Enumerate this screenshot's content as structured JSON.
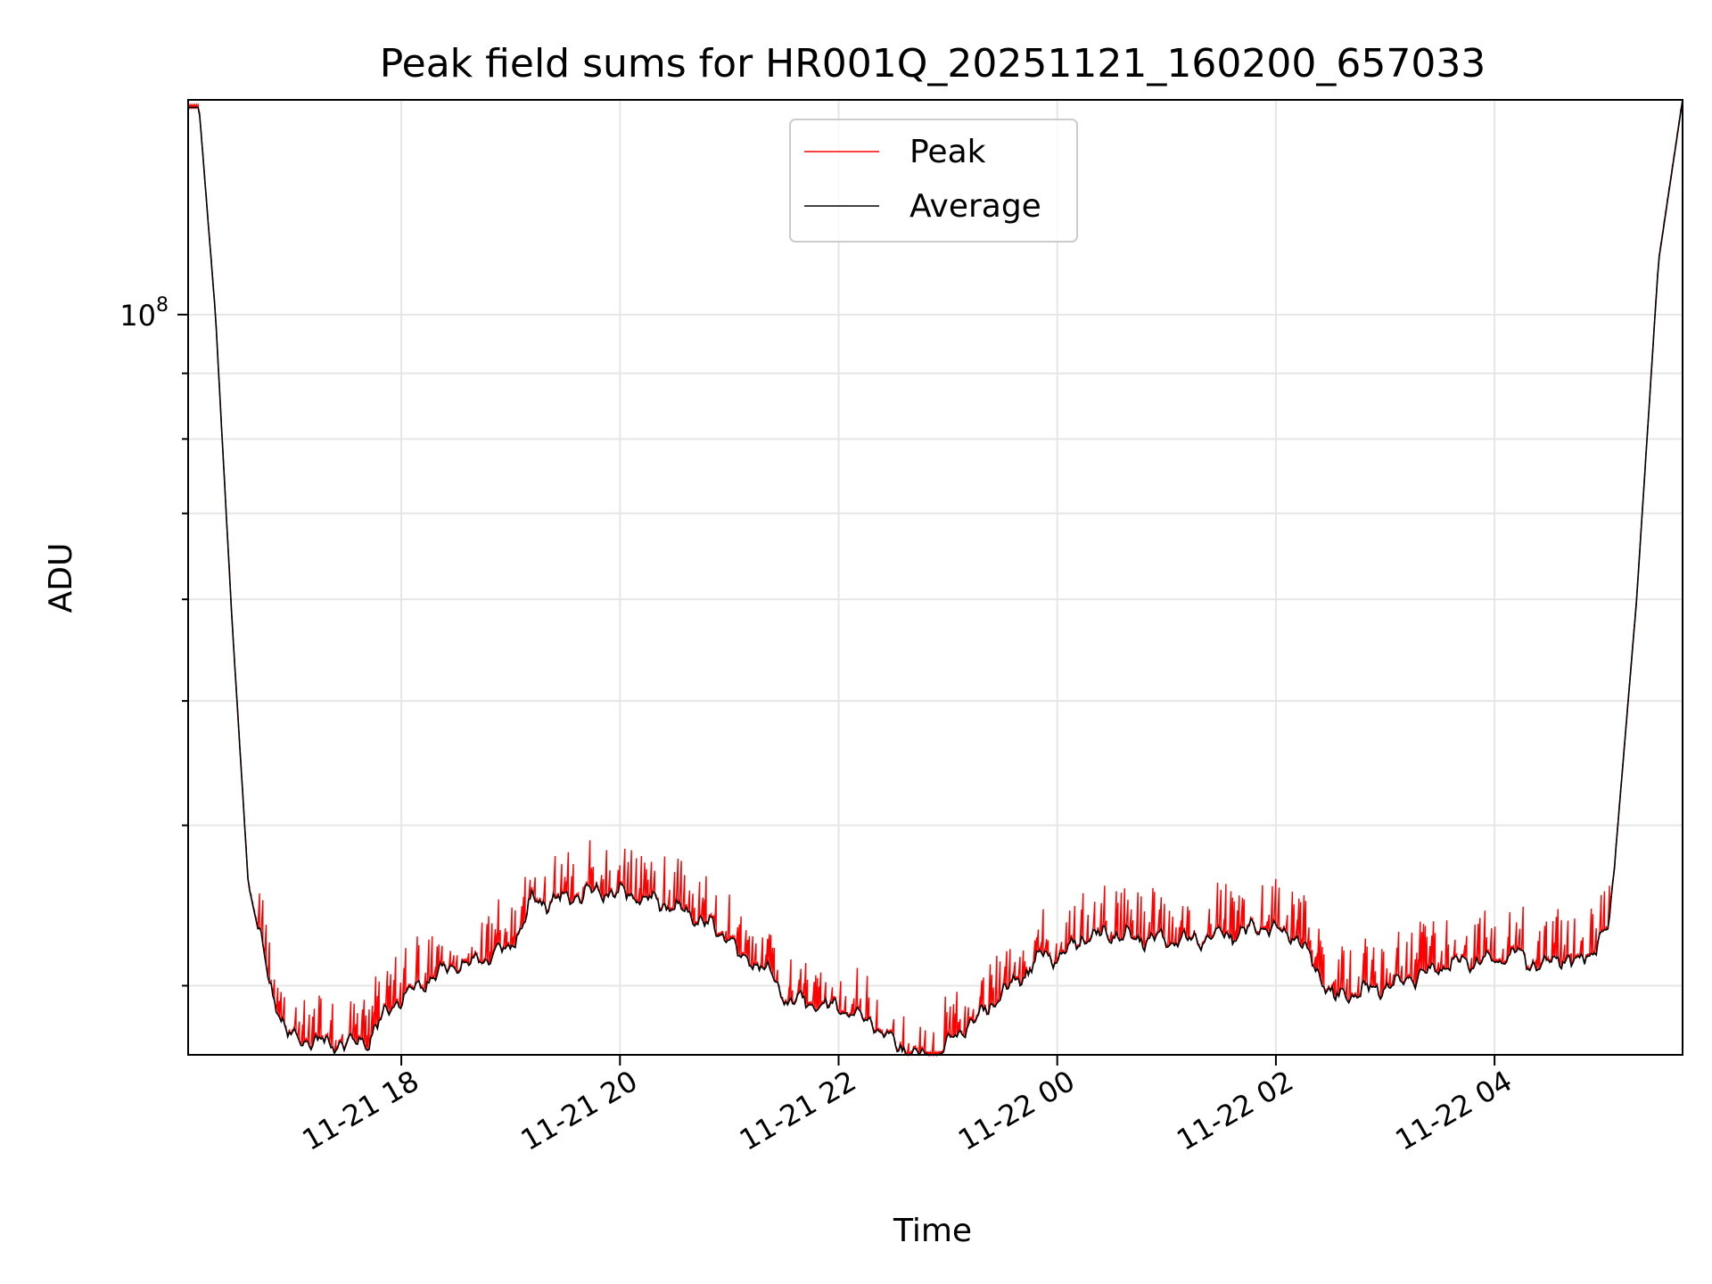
{
  "chart_data": {
    "type": "line",
    "title": "Peak field sums for HR001Q_20251121_160200_657033",
    "xlabel": "Time",
    "ylabel": "ADU",
    "yscale": "log",
    "ylim": [
      26500000,
      147000000
    ],
    "xlim_hours": [
      16.05,
      29.72
    ],
    "grid": true,
    "legend_position": "upper center",
    "x_ticks": [
      {
        "hour": 18,
        "label": "11-21 18"
      },
      {
        "hour": 20,
        "label": "11-21 20"
      },
      {
        "hour": 22,
        "label": "11-21 22"
      },
      {
        "hour": 24,
        "label": "11-22 00"
      },
      {
        "hour": 26,
        "label": "11-22 02"
      },
      {
        "hour": 28,
        "label": "11-22 04"
      }
    ],
    "y_ticks": [
      {
        "value": 100000000,
        "base": "10",
        "exponent": "8"
      }
    ],
    "y_minor_ticks": [
      30000000,
      40000000,
      50000000,
      60000000,
      70000000,
      80000000,
      90000000,
      200000000
    ],
    "series": [
      {
        "name": "Peak",
        "color": "#ff0000",
        "role": "spiky upper envelope, spikes above average"
      },
      {
        "name": "Average",
        "color": "#000000",
        "x_hours": [
          16.05,
          16.15,
          16.3,
          16.45,
          16.6,
          16.8,
          16.95,
          17.2,
          17.5,
          17.7,
          17.9,
          18.1,
          18.4,
          18.7,
          19.0,
          19.1,
          19.2,
          19.3,
          19.5,
          19.8,
          20.1,
          20.4,
          20.7,
          20.9,
          21.0,
          21.1,
          21.3,
          21.5,
          21.7,
          21.9,
          22.1,
          22.3,
          22.5,
          22.7,
          22.85,
          23.0,
          23.3,
          23.6,
          23.9,
          24.0,
          24.2,
          24.5,
          24.8,
          25.1,
          25.4,
          25.7,
          25.9,
          26.2,
          26.35,
          26.55,
          26.8,
          27.1,
          27.4,
          27.7,
          28.0,
          28.2,
          28.4,
          28.6,
          28.75,
          28.9,
          29.05,
          29.3,
          29.5,
          29.72
        ],
        "y": [
          145000000,
          145000000,
          100000000,
          58000000,
          36000000,
          30000000,
          27500000,
          27100000,
          27000000,
          27200000,
          28900000,
          29700000,
          30900000,
          31300000,
          32200000,
          33500000,
          35000000,
          34800000,
          35100000,
          35600000,
          35300000,
          34700000,
          33900000,
          33000000,
          32800000,
          31500000,
          31200000,
          29400000,
          29100000,
          28900000,
          28700000,
          28100000,
          27100000,
          26500000,
          26300000,
          27000000,
          28500000,
          30100000,
          31800000,
          31500000,
          32600000,
          33000000,
          32600000,
          32500000,
          32700000,
          33000000,
          33400000,
          32800000,
          31000000,
          29300000,
          29700000,
          30100000,
          30700000,
          31400000,
          31300000,
          31800000,
          31000000,
          31600000,
          31200000,
          32000000,
          33300000,
          60000000,
          110000000,
          147000000
        ]
      }
    ]
  }
}
